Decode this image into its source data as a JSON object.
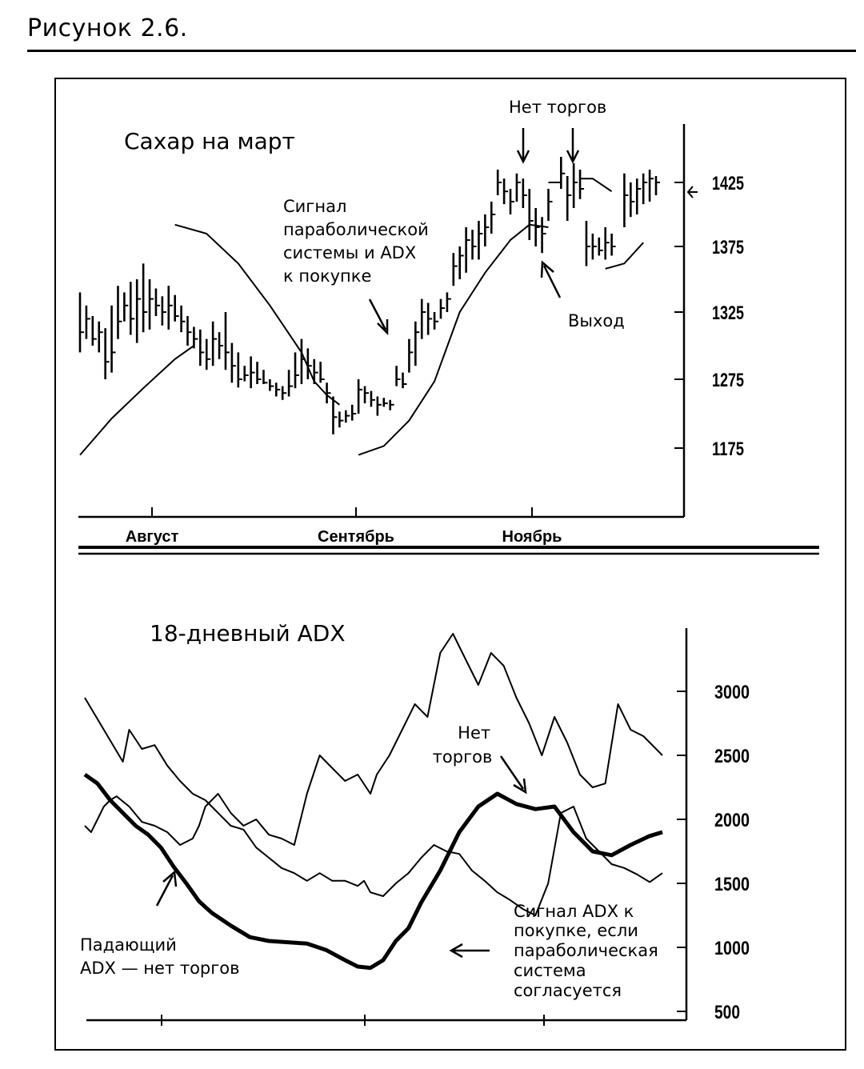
{
  "figure_caption": "Рисунок 2.6.",
  "chart_data": [
    {
      "type": "line",
      "subtype": "bar-chart-with-parabolic-sar",
      "title": "Сахар на март",
      "x_ticks": [
        "Август",
        "Сентябрь",
        "Ноябрь"
      ],
      "y_ticks": [
        1175,
        1275,
        1325,
        1375,
        1425
      ],
      "ylim": [
        1155,
        1450
      ],
      "grid": false,
      "annotations": {
        "no_trading": "Нет торгов",
        "buy_signal": "Сигнал параболической системы и ADX к покупке",
        "buy_signal_lines": [
          "Сигнал",
          "параболической",
          "системы и ADX",
          "к покупке"
        ],
        "exit": "Выход"
      },
      "price_bars": [
        {
          "x": 0,
          "h": 1340,
          "l": 1295,
          "c": 1310
        },
        {
          "x": 2,
          "h": 1330,
          "l": 1305,
          "c": 1320
        },
        {
          "x": 4,
          "h": 1322,
          "l": 1300,
          "c": 1305
        },
        {
          "x": 6,
          "h": 1318,
          "l": 1295,
          "c": 1310
        },
        {
          "x": 8,
          "h": 1313,
          "l": 1275,
          "c": 1288
        },
        {
          "x": 10,
          "h": 1330,
          "l": 1280,
          "c": 1295
        },
        {
          "x": 12,
          "h": 1345,
          "l": 1305,
          "c": 1318
        },
        {
          "x": 14,
          "h": 1340,
          "l": 1318,
          "c": 1330
        },
        {
          "x": 16,
          "h": 1348,
          "l": 1308,
          "c": 1320
        },
        {
          "x": 18,
          "h": 1350,
          "l": 1302,
          "c": 1335
        },
        {
          "x": 20,
          "h": 1362,
          "l": 1310,
          "c": 1325
        },
        {
          "x": 22,
          "h": 1350,
          "l": 1312,
          "c": 1335
        },
        {
          "x": 24,
          "h": 1343,
          "l": 1322,
          "c": 1330
        },
        {
          "x": 26,
          "h": 1337,
          "l": 1315,
          "c": 1325
        },
        {
          "x": 28,
          "h": 1345,
          "l": 1312,
          "c": 1330
        },
        {
          "x": 30,
          "h": 1338,
          "l": 1318,
          "c": 1322
        },
        {
          "x": 32,
          "h": 1330,
          "l": 1310,
          "c": 1318
        },
        {
          "x": 34,
          "h": 1322,
          "l": 1300,
          "c": 1310
        },
        {
          "x": 36,
          "h": 1314,
          "l": 1298,
          "c": 1305
        },
        {
          "x": 38,
          "h": 1312,
          "l": 1285,
          "c": 1295
        },
        {
          "x": 40,
          "h": 1305,
          "l": 1282,
          "c": 1290
        },
        {
          "x": 42,
          "h": 1318,
          "l": 1285,
          "c": 1305
        },
        {
          "x": 44,
          "h": 1310,
          "l": 1290,
          "c": 1300
        },
        {
          "x": 46,
          "h": 1325,
          "l": 1282,
          "c": 1295
        },
        {
          "x": 48,
          "h": 1302,
          "l": 1270,
          "c": 1285
        },
        {
          "x": 50,
          "h": 1295,
          "l": 1263,
          "c": 1275
        },
        {
          "x": 52,
          "h": 1285,
          "l": 1272,
          "c": 1278
        },
        {
          "x": 54,
          "h": 1292,
          "l": 1262,
          "c": 1280
        },
        {
          "x": 56,
          "h": 1288,
          "l": 1268,
          "c": 1275
        },
        {
          "x": 58,
          "h": 1282,
          "l": 1268,
          "c": 1270
        },
        {
          "x": 60,
          "h": 1275,
          "l": 1258,
          "c": 1265
        },
        {
          "x": 62,
          "h": 1270,
          "l": 1250,
          "c": 1260
        },
        {
          "x": 64,
          "h": 1265,
          "l": 1245,
          "c": 1255
        },
        {
          "x": 66,
          "h": 1282,
          "l": 1250,
          "c": 1265
        },
        {
          "x": 68,
          "h": 1295,
          "l": 1262,
          "c": 1278
        },
        {
          "x": 70,
          "h": 1305,
          "l": 1268,
          "c": 1290
        },
        {
          "x": 72,
          "h": 1298,
          "l": 1275,
          "c": 1285
        },
        {
          "x": 74,
          "h": 1290,
          "l": 1268,
          "c": 1280
        },
        {
          "x": 76,
          "h": 1288,
          "l": 1270,
          "c": 1275
        },
        {
          "x": 78,
          "h": 1270,
          "l": 1240,
          "c": 1255
        },
        {
          "x": 80,
          "h": 1250,
          "l": 1195,
          "c": 1220
        },
        {
          "x": 82,
          "h": 1228,
          "l": 1205,
          "c": 1215
        },
        {
          "x": 84,
          "h": 1230,
          "l": 1212,
          "c": 1222
        },
        {
          "x": 86,
          "h": 1238,
          "l": 1215,
          "c": 1225
        },
        {
          "x": 88,
          "h": 1275,
          "l": 1225,
          "c": 1260
        },
        {
          "x": 90,
          "h": 1265,
          "l": 1240,
          "c": 1255
        },
        {
          "x": 92,
          "h": 1258,
          "l": 1235,
          "c": 1245
        },
        {
          "x": 94,
          "h": 1250,
          "l": 1222,
          "c": 1238
        },
        {
          "x": 96,
          "h": 1248,
          "l": 1235,
          "c": 1240
        },
        {
          "x": 98,
          "h": 1245,
          "l": 1230,
          "c": 1238
        },
        {
          "x": 100,
          "h": 1285,
          "l": 1265,
          "c": 1275
        },
        {
          "x": 102,
          "h": 1280,
          "l": 1262,
          "c": 1268
        },
        {
          "x": 104,
          "h": 1305,
          "l": 1280,
          "c": 1295
        },
        {
          "x": 106,
          "h": 1318,
          "l": 1285,
          "c": 1310
        },
        {
          "x": 108,
          "h": 1335,
          "l": 1305,
          "c": 1325
        },
        {
          "x": 110,
          "h": 1332,
          "l": 1308,
          "c": 1320
        },
        {
          "x": 112,
          "h": 1325,
          "l": 1312,
          "c": 1318
        },
        {
          "x": 114,
          "h": 1335,
          "l": 1320,
          "c": 1328
        },
        {
          "x": 116,
          "h": 1340,
          "l": 1325,
          "c": 1335
        },
        {
          "x": 118,
          "h": 1370,
          "l": 1345,
          "c": 1360
        },
        {
          "x": 120,
          "h": 1375,
          "l": 1350,
          "c": 1368
        },
        {
          "x": 122,
          "h": 1390,
          "l": 1355,
          "c": 1380
        },
        {
          "x": 124,
          "h": 1388,
          "l": 1365,
          "c": 1375
        },
        {
          "x": 126,
          "h": 1395,
          "l": 1365,
          "c": 1385
        },
        {
          "x": 128,
          "h": 1400,
          "l": 1375,
          "c": 1390
        },
        {
          "x": 130,
          "h": 1410,
          "l": 1385,
          "c": 1400
        },
        {
          "x": 132,
          "h": 1435,
          "l": 1415,
          "c": 1425
        },
        {
          "x": 134,
          "h": 1428,
          "l": 1408,
          "c": 1418
        },
        {
          "x": 136,
          "h": 1420,
          "l": 1400,
          "c": 1410
        },
        {
          "x": 138,
          "h": 1432,
          "l": 1410,
          "c": 1425
        },
        {
          "x": 140,
          "h": 1428,
          "l": 1405,
          "c": 1415
        },
        {
          "x": 142,
          "h": 1420,
          "l": 1380,
          "c": 1395
        },
        {
          "x": 144,
          "h": 1405,
          "l": 1375,
          "c": 1390
        },
        {
          "x": 146,
          "h": 1398,
          "l": 1370,
          "c": 1385
        },
        {
          "x": 148,
          "h": 1420,
          "l": 1395,
          "c": 1410
        },
        {
          "x": 152,
          "h": 1445,
          "l": 1420,
          "c": 1432
        },
        {
          "x": 154,
          "h": 1430,
          "l": 1395,
          "c": 1415
        },
        {
          "x": 156,
          "h": 1440,
          "l": 1405,
          "c": 1425
        },
        {
          "x": 158,
          "h": 1435,
          "l": 1412,
          "c": 1420
        },
        {
          "x": 160,
          "h": 1395,
          "l": 1360,
          "c": 1375
        },
        {
          "x": 162,
          "h": 1385,
          "l": 1365,
          "c": 1375
        },
        {
          "x": 164,
          "h": 1382,
          "l": 1368,
          "c": 1372
        },
        {
          "x": 166,
          "h": 1390,
          "l": 1365,
          "c": 1378
        },
        {
          "x": 168,
          "h": 1385,
          "l": 1368,
          "c": 1375
        },
        {
          "x": 172,
          "h": 1432,
          "l": 1390,
          "c": 1415
        },
        {
          "x": 174,
          "h": 1425,
          "l": 1398,
          "c": 1410
        },
        {
          "x": 176,
          "h": 1428,
          "l": 1400,
          "c": 1420
        },
        {
          "x": 178,
          "h": 1432,
          "l": 1408,
          "c": 1425
        },
        {
          "x": 180,
          "h": 1435,
          "l": 1410,
          "c": 1428
        },
        {
          "x": 182,
          "h": 1430,
          "l": 1415,
          "c": 1425
        }
      ],
      "series": [
        {
          "segments": [
            {
              "x": [
                0,
                10,
                20,
                30,
                36
              ],
              "y": [
                1165,
                1218,
                1262,
                1290,
                1300
              ]
            },
            {
              "x": [
                30,
                40,
                50,
                60,
                70,
                74,
                78,
                82
              ],
              "y": [
                1392,
                1385,
                1362,
                1330,
                1295,
                1272,
                1252,
                1238
              ]
            },
            {
              "x": [
                88,
                96,
                104,
                112,
                120,
                128,
                136,
                142,
                148
              ],
              "y": [
                1165,
                1178,
                1215,
                1272,
                1325,
                1355,
                1380,
                1392,
                1390
              ]
            },
            {
              "x": [
                148,
                152
              ],
              "y": [
                1425,
                1425
              ]
            },
            {
              "x": [
                158,
                162,
                168
              ],
              "y": [
                1428,
                1428,
                1418
              ]
            },
            {
              "x": [
                166,
                172,
                178
              ],
              "y": [
                1358,
                1362,
                1378
              ]
            }
          ]
        }
      ]
    },
    {
      "type": "line",
      "title": "18-дневный ADX",
      "y_ticks": [
        500,
        1000,
        1500,
        2000,
        2500,
        3000
      ],
      "ylim": [
        400,
        3450
      ],
      "grid": false,
      "annotations": {
        "no_trading": "Нет торгов",
        "no_trading_lines": [
          "Нет",
          "торгов"
        ],
        "falling_adx": "Падающий ADX — нет торгов",
        "falling_adx_lines": [
          "Падающий",
          "ADX — нет торгов"
        ],
        "buy_signal": "Сигнал ADX к покупке, если параболическая система согласуется",
        "buy_signal_lines": [
          "Сигнал ADX к",
          "покупке, если",
          "параболическая",
          "система",
          "согласуется"
        ]
      },
      "series": [
        {
          "style": "thin",
          "x": [
            0,
            6,
            12,
            14,
            18,
            22,
            26,
            30,
            34,
            38,
            42,
            46,
            50,
            54,
            58,
            62,
            66,
            70,
            74,
            78,
            82,
            86,
            88,
            90,
            94,
            98,
            102,
            106,
            110,
            114,
            118,
            122,
            126,
            130,
            134,
            138,
            142,
            146,
            150,
            154,
            158,
            162,
            166,
            170,
            174,
            178,
            182
          ],
          "y": [
            2950,
            2700,
            2450,
            2700,
            2550,
            2580,
            2420,
            2300,
            2200,
            2150,
            2050,
            1950,
            1920,
            1780,
            1700,
            1620,
            1580,
            1520,
            1580,
            1520,
            1520,
            1480,
            1520,
            1430,
            1400,
            1500,
            1580,
            1700,
            1800,
            1750,
            1730,
            1600,
            1520,
            1430,
            1370,
            1300,
            1250,
            1500,
            2050,
            2100,
            1850,
            1750,
            1650,
            1620,
            1570,
            1510,
            1580
          ]
        },
        {
          "style": "thin",
          "x": [
            0,
            2,
            4,
            6,
            8,
            10,
            14,
            18,
            22,
            26,
            30,
            34,
            36,
            38,
            42,
            46,
            50,
            54,
            58,
            62,
            66,
            70,
            74,
            78,
            82,
            86,
            90,
            92,
            96,
            100,
            104,
            108,
            112,
            116,
            120,
            124,
            128,
            132,
            136,
            140,
            144,
            148,
            152,
            156,
            160,
            164,
            168,
            172,
            176,
            180,
            182
          ],
          "y": [
            1950,
            1900,
            2000,
            2100,
            2150,
            2180,
            2100,
            1980,
            1950,
            1900,
            1800,
            1850,
            1950,
            2100,
            2200,
            2050,
            1950,
            2000,
            1880,
            1850,
            1800,
            2200,
            2500,
            2400,
            2300,
            2350,
            2200,
            2350,
            2500,
            2700,
            2900,
            2800,
            3300,
            3450,
            3250,
            3050,
            3300,
            3200,
            2950,
            2750,
            2500,
            2800,
            2600,
            2350,
            2250,
            2280,
            2900,
            2700,
            2650,
            2550,
            2500
          ]
        },
        {
          "style": "thick",
          "x": [
            0,
            4,
            8,
            12,
            16,
            20,
            24,
            28,
            32,
            36,
            40,
            46,
            52,
            58,
            64,
            70,
            76,
            82,
            86,
            90,
            94,
            98,
            102,
            106,
            112,
            118,
            124,
            130,
            136,
            142,
            148,
            154,
            160,
            166,
            172,
            178,
            182
          ],
          "y": [
            2350,
            2280,
            2150,
            2050,
            1950,
            1880,
            1780,
            1630,
            1500,
            1360,
            1270,
            1170,
            1080,
            1050,
            1040,
            1030,
            980,
            900,
            850,
            840,
            900,
            1050,
            1150,
            1350,
            1600,
            1900,
            2100,
            2200,
            2120,
            2080,
            2100,
            1900,
            1750,
            1720,
            1800,
            1870,
            1900
          ]
        }
      ]
    }
  ]
}
